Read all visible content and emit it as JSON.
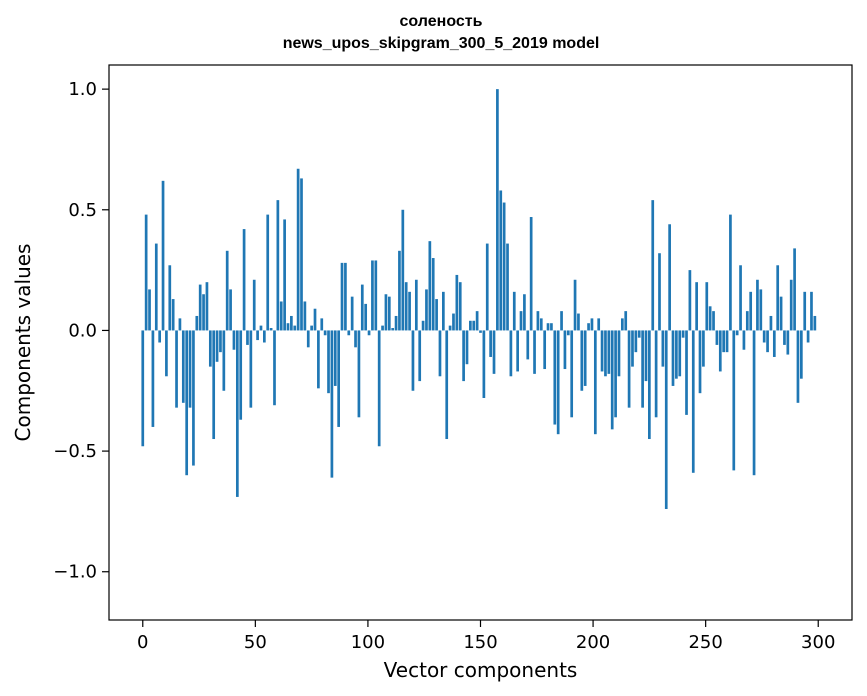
{
  "chart_data": {
    "type": "bar",
    "title": "соленость",
    "subtitle": "news_upos_skipgram_300_5_2019 model",
    "xlabel": "Vector components",
    "ylabel": "Components values",
    "xlim": [
      -15,
      315
    ],
    "ylim": [
      -1.2,
      1.1
    ],
    "xticks": [
      0,
      50,
      100,
      150,
      200,
      250,
      300
    ],
    "yticks": [
      -1.0,
      -0.5,
      0.0,
      0.5,
      1.0
    ],
    "ytick_labels": [
      "−1.0",
      "−0.5",
      "0.0",
      "0.5",
      "1.0"
    ],
    "bar_color": "#1f77b4",
    "grid": false,
    "values": [
      -0.48,
      0.48,
      0.17,
      -0.4,
      0.36,
      -0.05,
      0.62,
      -0.19,
      0.27,
      0.13,
      -0.32,
      0.05,
      -0.3,
      -0.6,
      -0.32,
      -0.56,
      0.06,
      0.19,
      0.15,
      0.2,
      -0.15,
      -0.45,
      -0.13,
      -0.09,
      -0.25,
      0.33,
      0.17,
      -0.08,
      -0.69,
      -0.37,
      0.42,
      -0.06,
      -0.32,
      0.21,
      -0.04,
      0.02,
      -0.05,
      0.48,
      0.01,
      -0.31,
      0.54,
      0.12,
      0.46,
      0.03,
      0.06,
      0.02,
      0.67,
      0.63,
      0.12,
      -0.07,
      0.02,
      0.09,
      -0.24,
      0.05,
      -0.02,
      -0.26,
      -0.61,
      -0.23,
      -0.4,
      0.28,
      0.28,
      -0.02,
      0.14,
      -0.07,
      -0.36,
      0.19,
      0.11,
      -0.02,
      0.29,
      0.29,
      -0.48,
      0.02,
      0.15,
      0.14,
      0.01,
      0.06,
      0.33,
      0.5,
      0.2,
      0.16,
      -0.25,
      0.21,
      -0.21,
      0.04,
      0.17,
      0.37,
      0.3,
      0.13,
      -0.19,
      0.16,
      -0.45,
      0.02,
      0.07,
      0.23,
      0.2,
      -0.21,
      -0.14,
      0.04,
      0.04,
      0.08,
      -0.01,
      -0.28,
      0.36,
      -0.11,
      -0.18,
      1.0,
      0.58,
      0.53,
      0.36,
      -0.19,
      0.16,
      -0.17,
      0.08,
      0.15,
      -0.12,
      0.47,
      -0.18,
      0.08,
      0.05,
      -0.16,
      0.03,
      0.03,
      -0.39,
      -0.43,
      0.08,
      -0.16,
      -0.02,
      -0.36,
      0.21,
      0.07,
      -0.25,
      -0.23,
      0.03,
      0.05,
      -0.43,
      0.05,
      -0.17,
      -0.19,
      -0.18,
      -0.41,
      -0.36,
      -0.19,
      0.05,
      0.08,
      -0.32,
      -0.15,
      -0.09,
      -0.03,
      -0.32,
      -0.21,
      -0.45,
      0.54,
      -0.36,
      0.32,
      -0.15,
      -0.74,
      0.44,
      -0.23,
      -0.2,
      -0.19,
      -0.03,
      -0.35,
      0.25,
      -0.59,
      0.2,
      -0.26,
      -0.15,
      0.2,
      0.1,
      0.08,
      -0.06,
      -0.17,
      -0.09,
      -0.09,
      0.48,
      -0.58,
      -0.02,
      0.27,
      -0.08,
      0.08,
      0.16,
      -0.6,
      0.21,
      0.17,
      -0.05,
      -0.09,
      0.06,
      -0.11,
      0.27,
      0.14,
      -0.06,
      -0.1,
      0.21,
      0.34,
      -0.3,
      -0.2,
      0.16,
      -0.05,
      0.16,
      0.06
    ]
  }
}
